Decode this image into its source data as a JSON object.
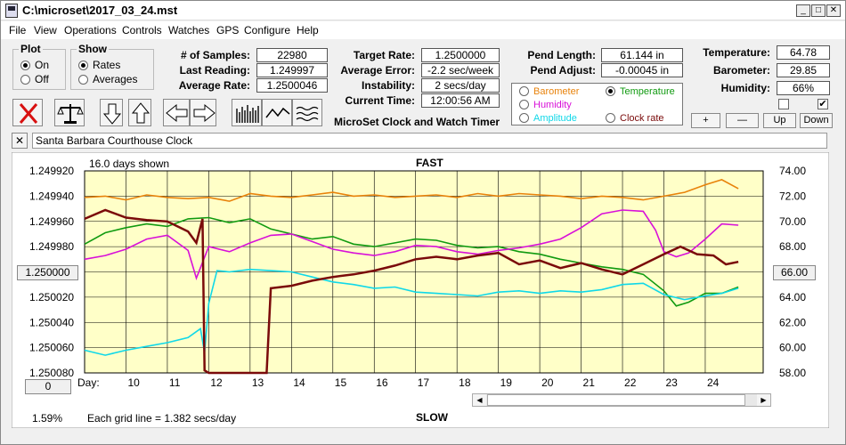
{
  "window": {
    "title": "C:\\microset\\2017_03_24.mst"
  },
  "menu": [
    "File",
    "View",
    "Operations",
    "Controls",
    "Watches",
    "GPS",
    "Configure",
    "Help"
  ],
  "plot": {
    "label": "Plot",
    "options": [
      "On",
      "Off"
    ],
    "selected": "On"
  },
  "show": {
    "label": "Show",
    "options": [
      "Rates",
      "Averages"
    ],
    "selected": "Rates"
  },
  "fields_left": [
    {
      "label": "# of Samples:",
      "value": "22980"
    },
    {
      "label": "Last Reading:",
      "value": "1.249997"
    },
    {
      "label": "Average Rate:",
      "value": "1.2500046"
    }
  ],
  "fields_mid": [
    {
      "label": "Target Rate:",
      "value": "1.2500000"
    },
    {
      "label": "Average Error:",
      "value": "-2.2 sec/week"
    },
    {
      "label": "Instability:",
      "value": "2 secs/day"
    },
    {
      "label": "Current Time:",
      "value": "12:00:56 AM"
    }
  ],
  "fields_pend": [
    {
      "label": "Pend Length:",
      "value": "61.144 in"
    },
    {
      "label": "Pend Adjust:",
      "value": "-0.00045 in"
    }
  ],
  "fields_env": [
    {
      "label": "Temperature:",
      "value": "64.78"
    },
    {
      "label": "Barometer:",
      "value": "29.85"
    },
    {
      "label": "Humidity:",
      "value": "66%"
    }
  ],
  "toolbar_title": "MicroSet Clock and Watch Timer",
  "legend": [
    {
      "name": "Barometer",
      "color": "#e8820a",
      "selected": false
    },
    {
      "name": "Temperature",
      "color": "#109a10",
      "selected": true
    },
    {
      "name": "Humidity",
      "color": "#d810d8",
      "selected": false
    },
    {
      "name": "Amplitude",
      "color": "#10d8e8",
      "selected": false
    },
    {
      "name": "Clock rate",
      "color": "#7a0a0a",
      "selected": false
    }
  ],
  "env_buttons": [
    "+",
    "—",
    "Up",
    "Down"
  ],
  "env_checks": [
    false,
    true
  ],
  "clock_name": "Santa Barbara Courthouse Clock",
  "chart_header": {
    "days_shown": "16.0 days shown",
    "fast": "FAST",
    "slow": "SLOW",
    "grid_note": "Each grid line = 1.382 secs/day",
    "percent": "1.59%"
  },
  "left_button": "1.250000",
  "right_button": "66.00",
  "bottom_left_button": "0",
  "chart_data": {
    "type": "line",
    "x_label": "Day:",
    "x_ticks": [
      "10",
      "11",
      "12",
      "13",
      "14",
      "15",
      "16",
      "17",
      "18",
      "19",
      "20",
      "21",
      "22",
      "23",
      "24"
    ],
    "x_range": [
      9,
      25.4
    ],
    "left_axis": {
      "ticks": [
        "1.249920",
        "1.249940",
        "1.249960",
        "1.249980",
        "1.250000",
        "1.250020",
        "1.250040",
        "1.250060",
        "1.250080"
      ],
      "range": [
        1.24992,
        1.25008
      ],
      "reversed": true
    },
    "right_axis": {
      "ticks": [
        "74.00",
        "72.00",
        "70.00",
        "68.00",
        "66.00",
        "64.00",
        "62.00",
        "60.00",
        "58.00"
      ],
      "range": [
        58,
        74
      ]
    },
    "grid": true,
    "background": "#ffffc8",
    "series": [
      {
        "name": "Barometer",
        "color": "#e8820a",
        "axis": "right",
        "points": [
          [
            9.0,
            71.9
          ],
          [
            9.5,
            72.0
          ],
          [
            10.0,
            71.7
          ],
          [
            10.5,
            72.1
          ],
          [
            11.0,
            71.9
          ],
          [
            11.5,
            71.8
          ],
          [
            12.0,
            71.9
          ],
          [
            12.5,
            71.6
          ],
          [
            13.0,
            72.2
          ],
          [
            13.5,
            72.0
          ],
          [
            14.0,
            71.9
          ],
          [
            14.5,
            72.1
          ],
          [
            15.0,
            72.3
          ],
          [
            15.5,
            72.0
          ],
          [
            16.0,
            72.1
          ],
          [
            16.5,
            71.9
          ],
          [
            17.0,
            72.0
          ],
          [
            17.5,
            72.1
          ],
          [
            18.0,
            71.9
          ],
          [
            18.5,
            72.2
          ],
          [
            19.0,
            72.0
          ],
          [
            19.5,
            72.2
          ],
          [
            20.0,
            72.1
          ],
          [
            20.5,
            72.0
          ],
          [
            21.0,
            71.8
          ],
          [
            21.5,
            72.0
          ],
          [
            22.0,
            71.9
          ],
          [
            22.5,
            71.7
          ],
          [
            23.0,
            72.0
          ],
          [
            23.5,
            72.3
          ],
          [
            24.0,
            72.9
          ],
          [
            24.4,
            73.3
          ],
          [
            24.8,
            72.6
          ]
        ]
      },
      {
        "name": "Temperature",
        "color": "#109a10",
        "axis": "right",
        "points": [
          [
            9.0,
            68.2
          ],
          [
            9.5,
            69.1
          ],
          [
            10.0,
            69.5
          ],
          [
            10.5,
            69.8
          ],
          [
            11.0,
            69.6
          ],
          [
            11.5,
            70.2
          ],
          [
            12.0,
            70.3
          ],
          [
            12.5,
            69.9
          ],
          [
            13.0,
            70.2
          ],
          [
            13.5,
            69.4
          ],
          [
            14.0,
            69.0
          ],
          [
            14.5,
            68.6
          ],
          [
            15.0,
            68.8
          ],
          [
            15.5,
            68.2
          ],
          [
            16.0,
            68.0
          ],
          [
            16.5,
            68.3
          ],
          [
            17.0,
            68.6
          ],
          [
            17.5,
            68.5
          ],
          [
            18.0,
            68.1
          ],
          [
            18.5,
            67.9
          ],
          [
            19.0,
            68.0
          ],
          [
            19.5,
            67.6
          ],
          [
            20.0,
            67.4
          ],
          [
            20.5,
            67.0
          ],
          [
            21.0,
            66.7
          ],
          [
            21.5,
            66.4
          ],
          [
            22.0,
            66.2
          ],
          [
            22.5,
            65.8
          ],
          [
            23.0,
            64.5
          ],
          [
            23.3,
            63.3
          ],
          [
            23.6,
            63.6
          ],
          [
            24.0,
            64.3
          ],
          [
            24.4,
            64.3
          ],
          [
            24.8,
            64.8
          ]
        ]
      },
      {
        "name": "Humidity",
        "color": "#d810d8",
        "axis": "right",
        "points": [
          [
            9.0,
            67.0
          ],
          [
            9.5,
            67.3
          ],
          [
            10.0,
            67.8
          ],
          [
            10.5,
            68.6
          ],
          [
            11.0,
            68.9
          ],
          [
            11.5,
            67.7
          ],
          [
            11.7,
            65.5
          ],
          [
            12.0,
            68.0
          ],
          [
            12.5,
            67.6
          ],
          [
            13.0,
            68.3
          ],
          [
            13.5,
            68.9
          ],
          [
            14.0,
            69.0
          ],
          [
            14.5,
            68.4
          ],
          [
            15.0,
            67.8
          ],
          [
            15.5,
            67.5
          ],
          [
            16.0,
            67.3
          ],
          [
            16.5,
            67.6
          ],
          [
            17.0,
            68.1
          ],
          [
            17.5,
            68.0
          ],
          [
            18.0,
            67.6
          ],
          [
            18.5,
            67.4
          ],
          [
            19.0,
            67.7
          ],
          [
            19.5,
            67.9
          ],
          [
            20.0,
            68.2
          ],
          [
            20.5,
            68.6
          ],
          [
            21.0,
            69.5
          ],
          [
            21.5,
            70.6
          ],
          [
            22.0,
            70.9
          ],
          [
            22.5,
            70.8
          ],
          [
            22.8,
            69.3
          ],
          [
            23.0,
            67.6
          ],
          [
            23.3,
            67.2
          ],
          [
            23.6,
            67.5
          ],
          [
            24.0,
            68.6
          ],
          [
            24.4,
            69.8
          ],
          [
            24.8,
            69.7
          ]
        ]
      },
      {
        "name": "Amplitude",
        "color": "#10d8e8",
        "axis": "right",
        "points": [
          [
            9.0,
            59.8
          ],
          [
            9.5,
            59.4
          ],
          [
            10.0,
            59.8
          ],
          [
            10.5,
            60.1
          ],
          [
            11.0,
            60.4
          ],
          [
            11.5,
            60.8
          ],
          [
            11.8,
            61.5
          ],
          [
            11.9,
            59.6
          ],
          [
            12.0,
            63.5
          ],
          [
            12.2,
            66.1
          ],
          [
            12.5,
            66.0
          ],
          [
            13.0,
            66.2
          ],
          [
            13.5,
            66.1
          ],
          [
            14.0,
            66.0
          ],
          [
            14.5,
            65.6
          ],
          [
            15.0,
            65.2
          ],
          [
            15.5,
            65.0
          ],
          [
            16.0,
            64.7
          ],
          [
            16.5,
            64.8
          ],
          [
            17.0,
            64.4
          ],
          [
            17.5,
            64.3
          ],
          [
            18.0,
            64.2
          ],
          [
            18.5,
            64.1
          ],
          [
            19.0,
            64.4
          ],
          [
            19.5,
            64.5
          ],
          [
            20.0,
            64.3
          ],
          [
            20.5,
            64.5
          ],
          [
            21.0,
            64.4
          ],
          [
            21.5,
            64.6
          ],
          [
            22.0,
            65.0
          ],
          [
            22.5,
            65.1
          ],
          [
            23.0,
            64.2
          ],
          [
            23.5,
            63.8
          ],
          [
            24.0,
            64.1
          ],
          [
            24.4,
            64.3
          ],
          [
            24.8,
            64.7
          ]
        ]
      },
      {
        "name": "Clock rate",
        "color": "#7a0a0a",
        "axis": "right",
        "points": [
          [
            9.0,
            70.2
          ],
          [
            9.5,
            70.9
          ],
          [
            10.0,
            70.3
          ],
          [
            10.5,
            70.1
          ],
          [
            11.0,
            70.0
          ],
          [
            11.5,
            69.2
          ],
          [
            11.7,
            68.3
          ],
          [
            11.85,
            70.2
          ],
          [
            11.9,
            58.2
          ],
          [
            12.0,
            58.0
          ],
          [
            12.5,
            58.0
          ],
          [
            13.0,
            58.0
          ],
          [
            13.4,
            58.0
          ],
          [
            13.5,
            64.7
          ],
          [
            14.0,
            64.9
          ],
          [
            14.5,
            65.3
          ],
          [
            15.0,
            65.6
          ],
          [
            15.5,
            65.8
          ],
          [
            16.0,
            66.1
          ],
          [
            16.5,
            66.5
          ],
          [
            17.0,
            67.0
          ],
          [
            17.5,
            67.2
          ],
          [
            18.0,
            67.0
          ],
          [
            18.5,
            67.3
          ],
          [
            19.0,
            67.5
          ],
          [
            19.5,
            66.6
          ],
          [
            20.0,
            66.9
          ],
          [
            20.5,
            66.3
          ],
          [
            21.0,
            66.7
          ],
          [
            21.5,
            66.2
          ],
          [
            22.0,
            65.8
          ],
          [
            22.5,
            66.6
          ],
          [
            23.0,
            67.4
          ],
          [
            23.4,
            68.0
          ],
          [
            23.8,
            67.4
          ],
          [
            24.2,
            67.3
          ],
          [
            24.5,
            66.6
          ],
          [
            24.8,
            66.8
          ]
        ]
      }
    ]
  }
}
